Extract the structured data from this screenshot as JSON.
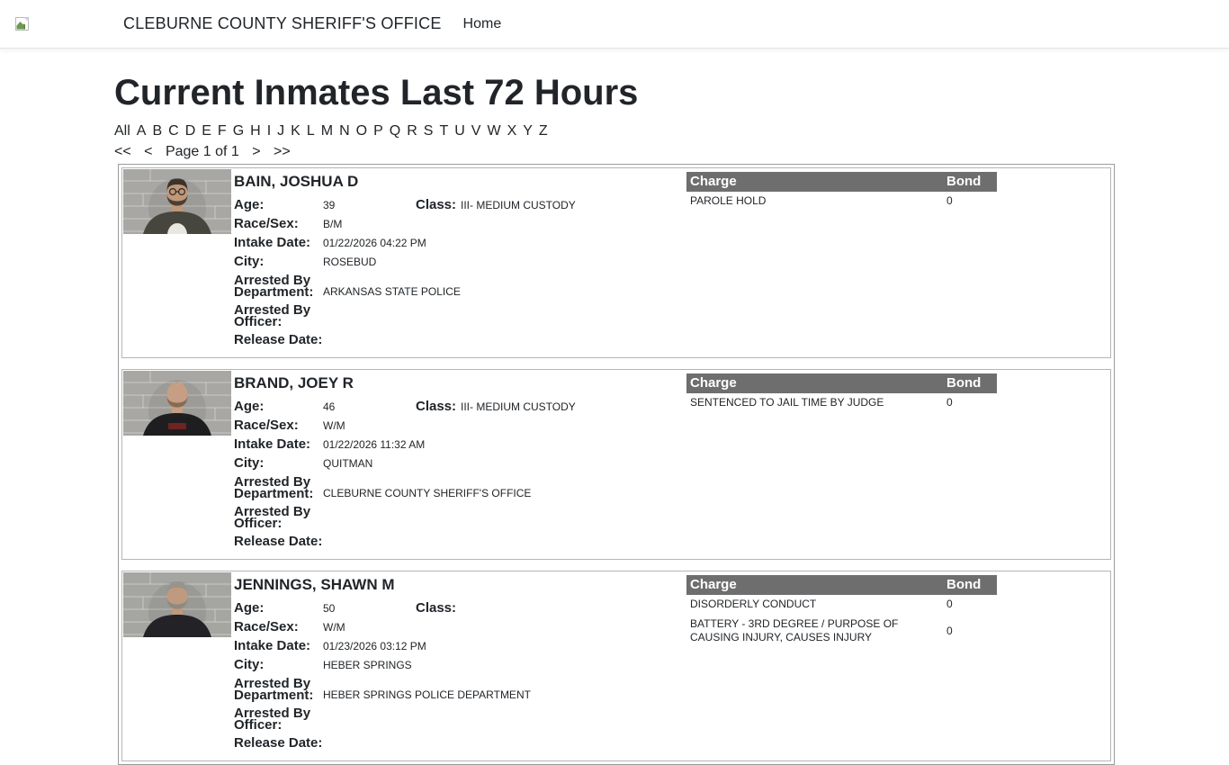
{
  "header": {
    "title": "CLEBURNE COUNTY SHERIFF'S OFFICE",
    "home": "Home"
  },
  "page": {
    "heading": "Current Inmates Last 72 Hours"
  },
  "filter": {
    "letters": [
      "All",
      "A",
      "B",
      "C",
      "D",
      "E",
      "F",
      "G",
      "H",
      "I",
      "J",
      "K",
      "L",
      "M",
      "N",
      "O",
      "P",
      "Q",
      "R",
      "S",
      "T",
      "U",
      "V",
      "W",
      "X",
      "Y",
      "Z"
    ]
  },
  "pagination": {
    "first": "<<",
    "prev": "<",
    "status": "Page 1 of 1",
    "next": ">",
    "last": ">>"
  },
  "labels": {
    "age": "Age:",
    "class": "Class:",
    "race_sex": "Race/Sex:",
    "intake_date": "Intake Date:",
    "city": "City:",
    "arrested_by_department": "Arrested By Department:",
    "arrested_by_officer": "Arrested By Officer:",
    "release_date": "Release Date:",
    "charge": "Charge",
    "bond": "Bond"
  },
  "inmates": [
    {
      "name": "BAIN, JOSHUA D",
      "age": "39",
      "class": "III- MEDIUM CUSTODY",
      "race_sex": "B/M",
      "intake_date": "01/22/2026 04:22 PM",
      "city": "ROSEBUD",
      "arrested_by_department": "ARKANSAS STATE POLICE",
      "arrested_by_officer": "",
      "release_date": "",
      "charges": [
        {
          "charge": "PAROLE HOLD",
          "bond": "0"
        }
      ],
      "photo": {
        "wall": "#a8a7a4",
        "skin": "#c09778",
        "hair": "#3b332c",
        "beard": "#4a3f33",
        "shirt": "#47463e",
        "tee": "#e9e7e2",
        "glasses": true
      }
    },
    {
      "name": "BRAND, JOEY R",
      "age": "46",
      "class": "III- MEDIUM CUSTODY",
      "race_sex": "W/M",
      "intake_date": "01/22/2026 11:32 AM",
      "city": "QUITMAN",
      "arrested_by_department": "CLEBURNE COUNTY SHERIFF'S OFFICE",
      "arrested_by_officer": "",
      "release_date": "",
      "charges": [
        {
          "charge": "SENTENCED TO JAIL TIME BY JUDGE",
          "bond": "0"
        }
      ],
      "photo": {
        "wall": "#a8a7a4",
        "skin": "#c59e83",
        "hair": "",
        "beard": "#8a6a52",
        "shirt": "#1e1d20",
        "graphic": "#7e2423"
      }
    },
    {
      "name": "JENNINGS, SHAWN M",
      "age": "50",
      "class": "",
      "race_sex": "W/M",
      "intake_date": "01/23/2026 03:12 PM",
      "city": "HEBER SPRINGS",
      "arrested_by_department": "HEBER SPRINGS POLICE DEPARTMENT",
      "arrested_by_officer": "",
      "release_date": "",
      "charges": [
        {
          "charge": "DISORDERLY CONDUCT",
          "bond": "0"
        },
        {
          "charge": "BATTERY - 3RD DEGREE / PURPOSE OF CAUSING INJURY, CAUSES INJURY",
          "bond": "0"
        }
      ],
      "photo": {
        "wall": "#a5a5a2",
        "skin": "#bf9a7e",
        "hair": "#98948c",
        "beard": "#8e8a82",
        "shirt": "#232226"
      }
    }
  ],
  "colors": {
    "table_header_bg": "#6e6e6e",
    "table_header_text": "#ffffff",
    "body_text": "#212529",
    "card_border": "#b5b5b5",
    "list_border": "#9b9b9b"
  }
}
